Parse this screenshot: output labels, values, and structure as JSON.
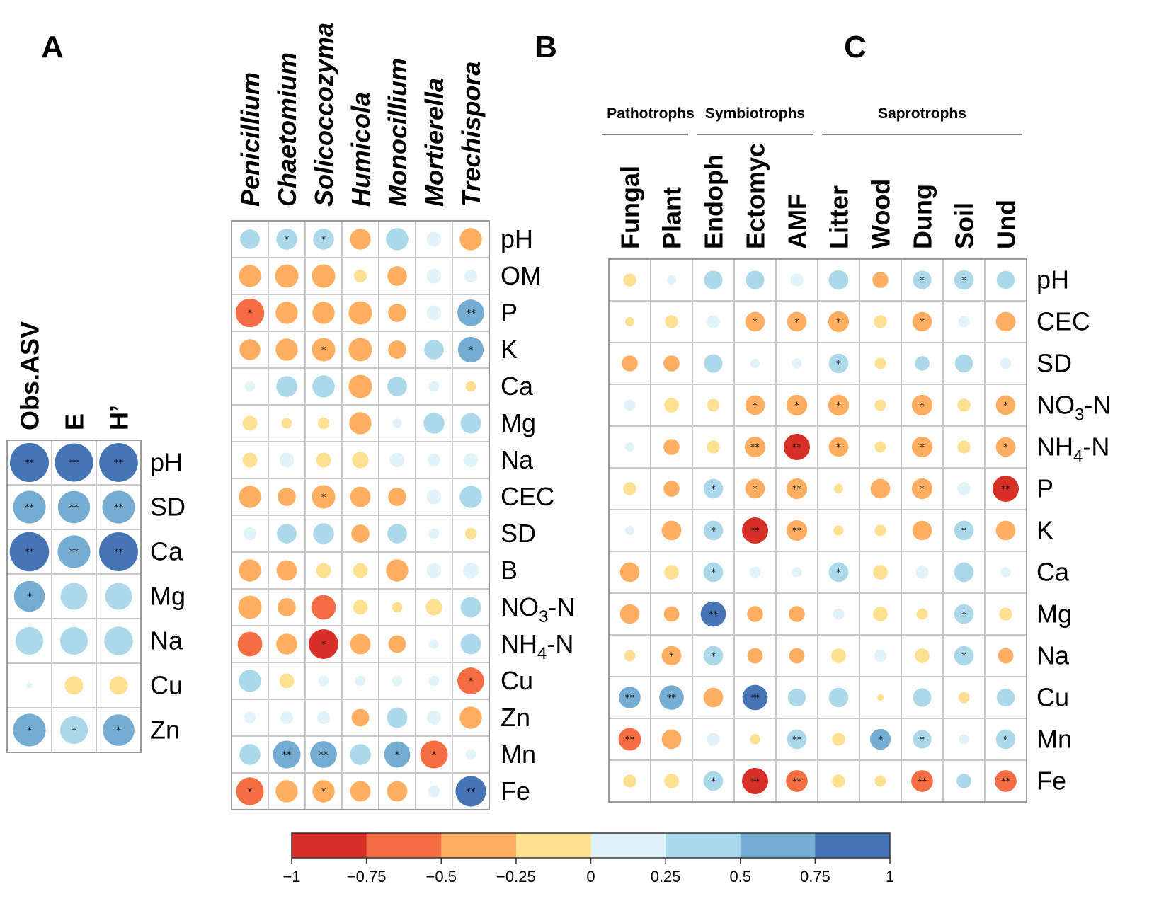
{
  "colors": {
    "bins": [
      "#d73027",
      "#f46d43",
      "#fdae61",
      "#fee090",
      "#e0f3f8",
      "#abd9e9",
      "#74add1",
      "#4575b4"
    ],
    "grid": "#c8c8c8"
  },
  "chart_data": [
    {
      "type": "heatmap",
      "panel": "A",
      "columns": [
        "Obs.ASV",
        "E",
        "H’"
      ],
      "rows": [
        "pH",
        "SD",
        "Ca",
        "Mg",
        "Na",
        "Cu",
        "Zn"
      ],
      "values": [
        [
          0.88,
          0.85,
          0.87
        ],
        [
          0.62,
          0.6,
          0.62
        ],
        [
          0.9,
          0.62,
          0.88
        ],
        [
          0.55,
          0.42,
          0.42
        ],
        [
          0.45,
          0.45,
          0.48
        ],
        [
          0.02,
          -0.2,
          -0.2
        ],
        [
          0.62,
          0.45,
          0.58
        ]
      ],
      "significance": [
        [
          "**",
          "**",
          "**"
        ],
        [
          "**",
          "**",
          "**"
        ],
        [
          "**",
          "**",
          "**"
        ],
        [
          "*",
          "",
          ""
        ],
        [
          "",
          "",
          ""
        ],
        [
          "",
          "",
          ""
        ],
        [
          "*",
          "*",
          "*"
        ]
      ]
    },
    {
      "type": "heatmap",
      "panel": "B",
      "columns": [
        "Penicillium",
        "Chaetomium",
        "Solicoccozyma",
        "Humicola",
        "Monocillium",
        "Mortierella",
        "Trechispora"
      ],
      "rows": [
        "pH",
        "OM",
        "P",
        "K",
        "Ca",
        "Mg",
        "Na",
        "CEC",
        "SD",
        "B",
        "NO3-N",
        "NH4-N",
        "Cu",
        "Zn",
        "Mn",
        "Fe"
      ],
      "values": [
        [
          0.35,
          0.4,
          0.4,
          -0.4,
          0.45,
          0.2,
          -0.45
        ],
        [
          -0.45,
          -0.5,
          -0.5,
          -0.15,
          -0.35,
          0.2,
          0.15
        ],
        [
          -0.75,
          -0.45,
          -0.45,
          -0.5,
          -0.3,
          0.2,
          0.65
        ],
        [
          -0.4,
          -0.45,
          -0.5,
          -0.5,
          -0.3,
          0.35,
          0.6
        ],
        [
          0.1,
          0.4,
          0.45,
          -0.5,
          0.35,
          0.1,
          -0.1
        ],
        [
          -0.2,
          -0.1,
          -0.12,
          -0.45,
          0.08,
          0.4,
          0.38
        ],
        [
          -0.2,
          0.2,
          -0.2,
          -0.25,
          0.2,
          0.15,
          0.18
        ],
        [
          -0.45,
          -0.3,
          -0.5,
          -0.38,
          -0.3,
          0.2,
          0.45
        ],
        [
          0.15,
          0.35,
          0.4,
          -0.3,
          0.35,
          0.1,
          -0.12
        ],
        [
          -0.45,
          -0.38,
          -0.2,
          -0.2,
          -0.45,
          0.2,
          0.22
        ],
        [
          -0.5,
          -0.3,
          -0.55,
          -0.2,
          -0.1,
          -0.25,
          0.38
        ],
        [
          -0.55,
          -0.4,
          -0.8,
          -0.38,
          -0.28,
          0.08,
          0.38
        ],
        [
          0.45,
          -0.2,
          0.1,
          0.1,
          0.1,
          0.1,
          -0.65
        ],
        [
          0.12,
          0.15,
          0.15,
          -0.28,
          0.38,
          0.18,
          -0.45
        ],
        [
          0.4,
          0.7,
          0.65,
          0.4,
          0.62,
          -0.7,
          0.1
        ],
        [
          -0.7,
          -0.45,
          -0.45,
          -0.38,
          -0.38,
          0.12,
          0.85
        ]
      ],
      "significance": [
        [
          "",
          "*",
          "*",
          "",
          "",
          "",
          ""
        ],
        [
          "",
          "",
          "",
          "",
          "",
          "",
          ""
        ],
        [
          "*",
          "",
          "",
          "",
          "",
          "",
          "**"
        ],
        [
          "",
          "",
          "*",
          "",
          "",
          "",
          "*"
        ],
        [
          "",
          "",
          "",
          "",
          "",
          "",
          ""
        ],
        [
          "",
          "",
          "",
          "",
          "",
          "",
          ""
        ],
        [
          "",
          "",
          "",
          "",
          "",
          "",
          ""
        ],
        [
          "",
          "",
          "*",
          "",
          "",
          "",
          ""
        ],
        [
          "",
          "",
          "",
          "",
          "",
          "",
          ""
        ],
        [
          "",
          "",
          "",
          "",
          "",
          "",
          ""
        ],
        [
          "",
          "",
          "",
          "",
          "",
          "",
          ""
        ],
        [
          "",
          "",
          "*",
          "",
          "",
          "",
          ""
        ],
        [
          "",
          "",
          "",
          "",
          "",
          "",
          "*"
        ],
        [
          "",
          "",
          "",
          "",
          "",
          "",
          ""
        ],
        [
          "",
          "**",
          "**",
          "",
          "*",
          "*",
          ""
        ],
        [
          "*",
          "",
          "*",
          "",
          "",
          "",
          "**"
        ]
      ]
    },
    {
      "type": "heatmap",
      "panel": "C",
      "groups": [
        {
          "label": "Pathotrophs",
          "columns": [
            "Fungal",
            "Plant"
          ]
        },
        {
          "label": "Symbiotrophs",
          "columns": [
            "Endoph",
            "Ectomyc",
            "AMF"
          ]
        },
        {
          "label": "Saprotrophs",
          "columns": [
            "Litter",
            "Wood",
            "Dung",
            "Soil",
            "Und"
          ]
        }
      ],
      "columns": [
        "Fungal",
        "Plant",
        "Endoph",
        "Ectomyc",
        "AMF",
        "Litter",
        "Wood",
        "Dung",
        "Soil",
        "Und"
      ],
      "rows": [
        "pH",
        "CEC",
        "SD",
        "NO3-N",
        "NH4-N",
        "P",
        "K",
        "Ca",
        "Mg",
        "Na",
        "Cu",
        "Mn",
        "Fe"
      ],
      "values": [
        [
          -0.2,
          0.1,
          0.4,
          0.4,
          0.2,
          0.45,
          -0.3,
          0.4,
          0.45,
          0.38
        ],
        [
          -0.1,
          -0.2,
          0.2,
          -0.45,
          -0.45,
          -0.5,
          -0.2,
          -0.45,
          0.15,
          -0.45
        ],
        [
          -0.3,
          -0.3,
          0.4,
          0.1,
          0.12,
          0.45,
          -0.15,
          0.25,
          0.38,
          0.15
        ],
        [
          0.15,
          -0.25,
          -0.18,
          -0.45,
          -0.5,
          -0.5,
          -0.15,
          -0.5,
          -0.2,
          -0.45
        ],
        [
          0.1,
          -0.3,
          -0.2,
          -0.5,
          -0.8,
          -0.45,
          -0.15,
          -0.5,
          -0.2,
          -0.45
        ],
        [
          -0.2,
          -0.3,
          0.45,
          -0.45,
          -0.5,
          -0.1,
          -0.45,
          -0.5,
          0.2,
          -0.8
        ],
        [
          0.1,
          -0.45,
          0.45,
          -0.8,
          -0.5,
          -0.12,
          -0.15,
          -0.45,
          0.45,
          -0.45
        ],
        [
          -0.45,
          -0.25,
          0.45,
          0.15,
          0.12,
          0.45,
          -0.25,
          0.2,
          0.45,
          0.12
        ],
        [
          -0.45,
          -0.28,
          0.75,
          -0.3,
          -0.3,
          0.15,
          -0.25,
          -0.15,
          0.45,
          -0.2
        ],
        [
          -0.15,
          -0.45,
          0.45,
          -0.28,
          -0.28,
          -0.25,
          0.18,
          -0.25,
          0.45,
          -0.28
        ],
        [
          0.55,
          0.7,
          -0.45,
          0.75,
          0.38,
          0.45,
          -0.05,
          0.4,
          -0.15,
          0.38
        ],
        [
          -0.6,
          -0.45,
          0.2,
          -0.12,
          0.45,
          -0.2,
          0.5,
          0.4,
          0.12,
          0.45
        ],
        [
          -0.2,
          -0.25,
          0.45,
          -0.8,
          -0.55,
          -0.2,
          -0.15,
          -0.55,
          0.25,
          -0.55
        ]
      ],
      "significance": [
        [
          "",
          "",
          "",
          "",
          "",
          "",
          "",
          "*",
          "*",
          ""
        ],
        [
          "",
          "",
          "",
          "*",
          "*",
          "*",
          "",
          "*",
          "",
          ""
        ],
        [
          "",
          "",
          "",
          "",
          "",
          "*",
          "",
          "",
          "",
          ""
        ],
        [
          "",
          "",
          "",
          "*",
          "*",
          "*",
          "",
          "*",
          "",
          "*"
        ],
        [
          "",
          "",
          "",
          "**",
          "**",
          "*",
          "",
          "*",
          "",
          "*"
        ],
        [
          "",
          "",
          "*",
          "*",
          "**",
          "",
          "",
          "*",
          "",
          "**"
        ],
        [
          "",
          "",
          "*",
          "**",
          "**",
          "",
          "",
          "",
          "*",
          ""
        ],
        [
          "",
          "",
          "*",
          "",
          "",
          "*",
          "",
          "",
          "",
          ""
        ],
        [
          "",
          "",
          "**",
          "",
          "",
          "",
          "",
          "",
          "*",
          ""
        ],
        [
          "",
          "*",
          "*",
          "",
          "",
          "",
          "",
          "",
          "*",
          ""
        ],
        [
          "**",
          "**",
          "",
          "**",
          "",
          "",
          "",
          "",
          "",
          ""
        ],
        [
          "**",
          "",
          "",
          "",
          "**",
          "",
          "*",
          "*",
          "",
          "*"
        ],
        [
          "",
          "",
          "*",
          "**",
          "**",
          "",
          "",
          "**",
          "",
          "**"
        ]
      ]
    }
  ],
  "colorbar": {
    "ticks": [
      -1,
      -0.75,
      -0.5,
      -0.25,
      0,
      0.25,
      0.5,
      0.75,
      1
    ],
    "tick_labels": [
      "−1",
      "−0.75",
      "−0.5",
      "−0.25",
      "0",
      "0.25",
      "0.5",
      "0.75",
      "1"
    ]
  }
}
